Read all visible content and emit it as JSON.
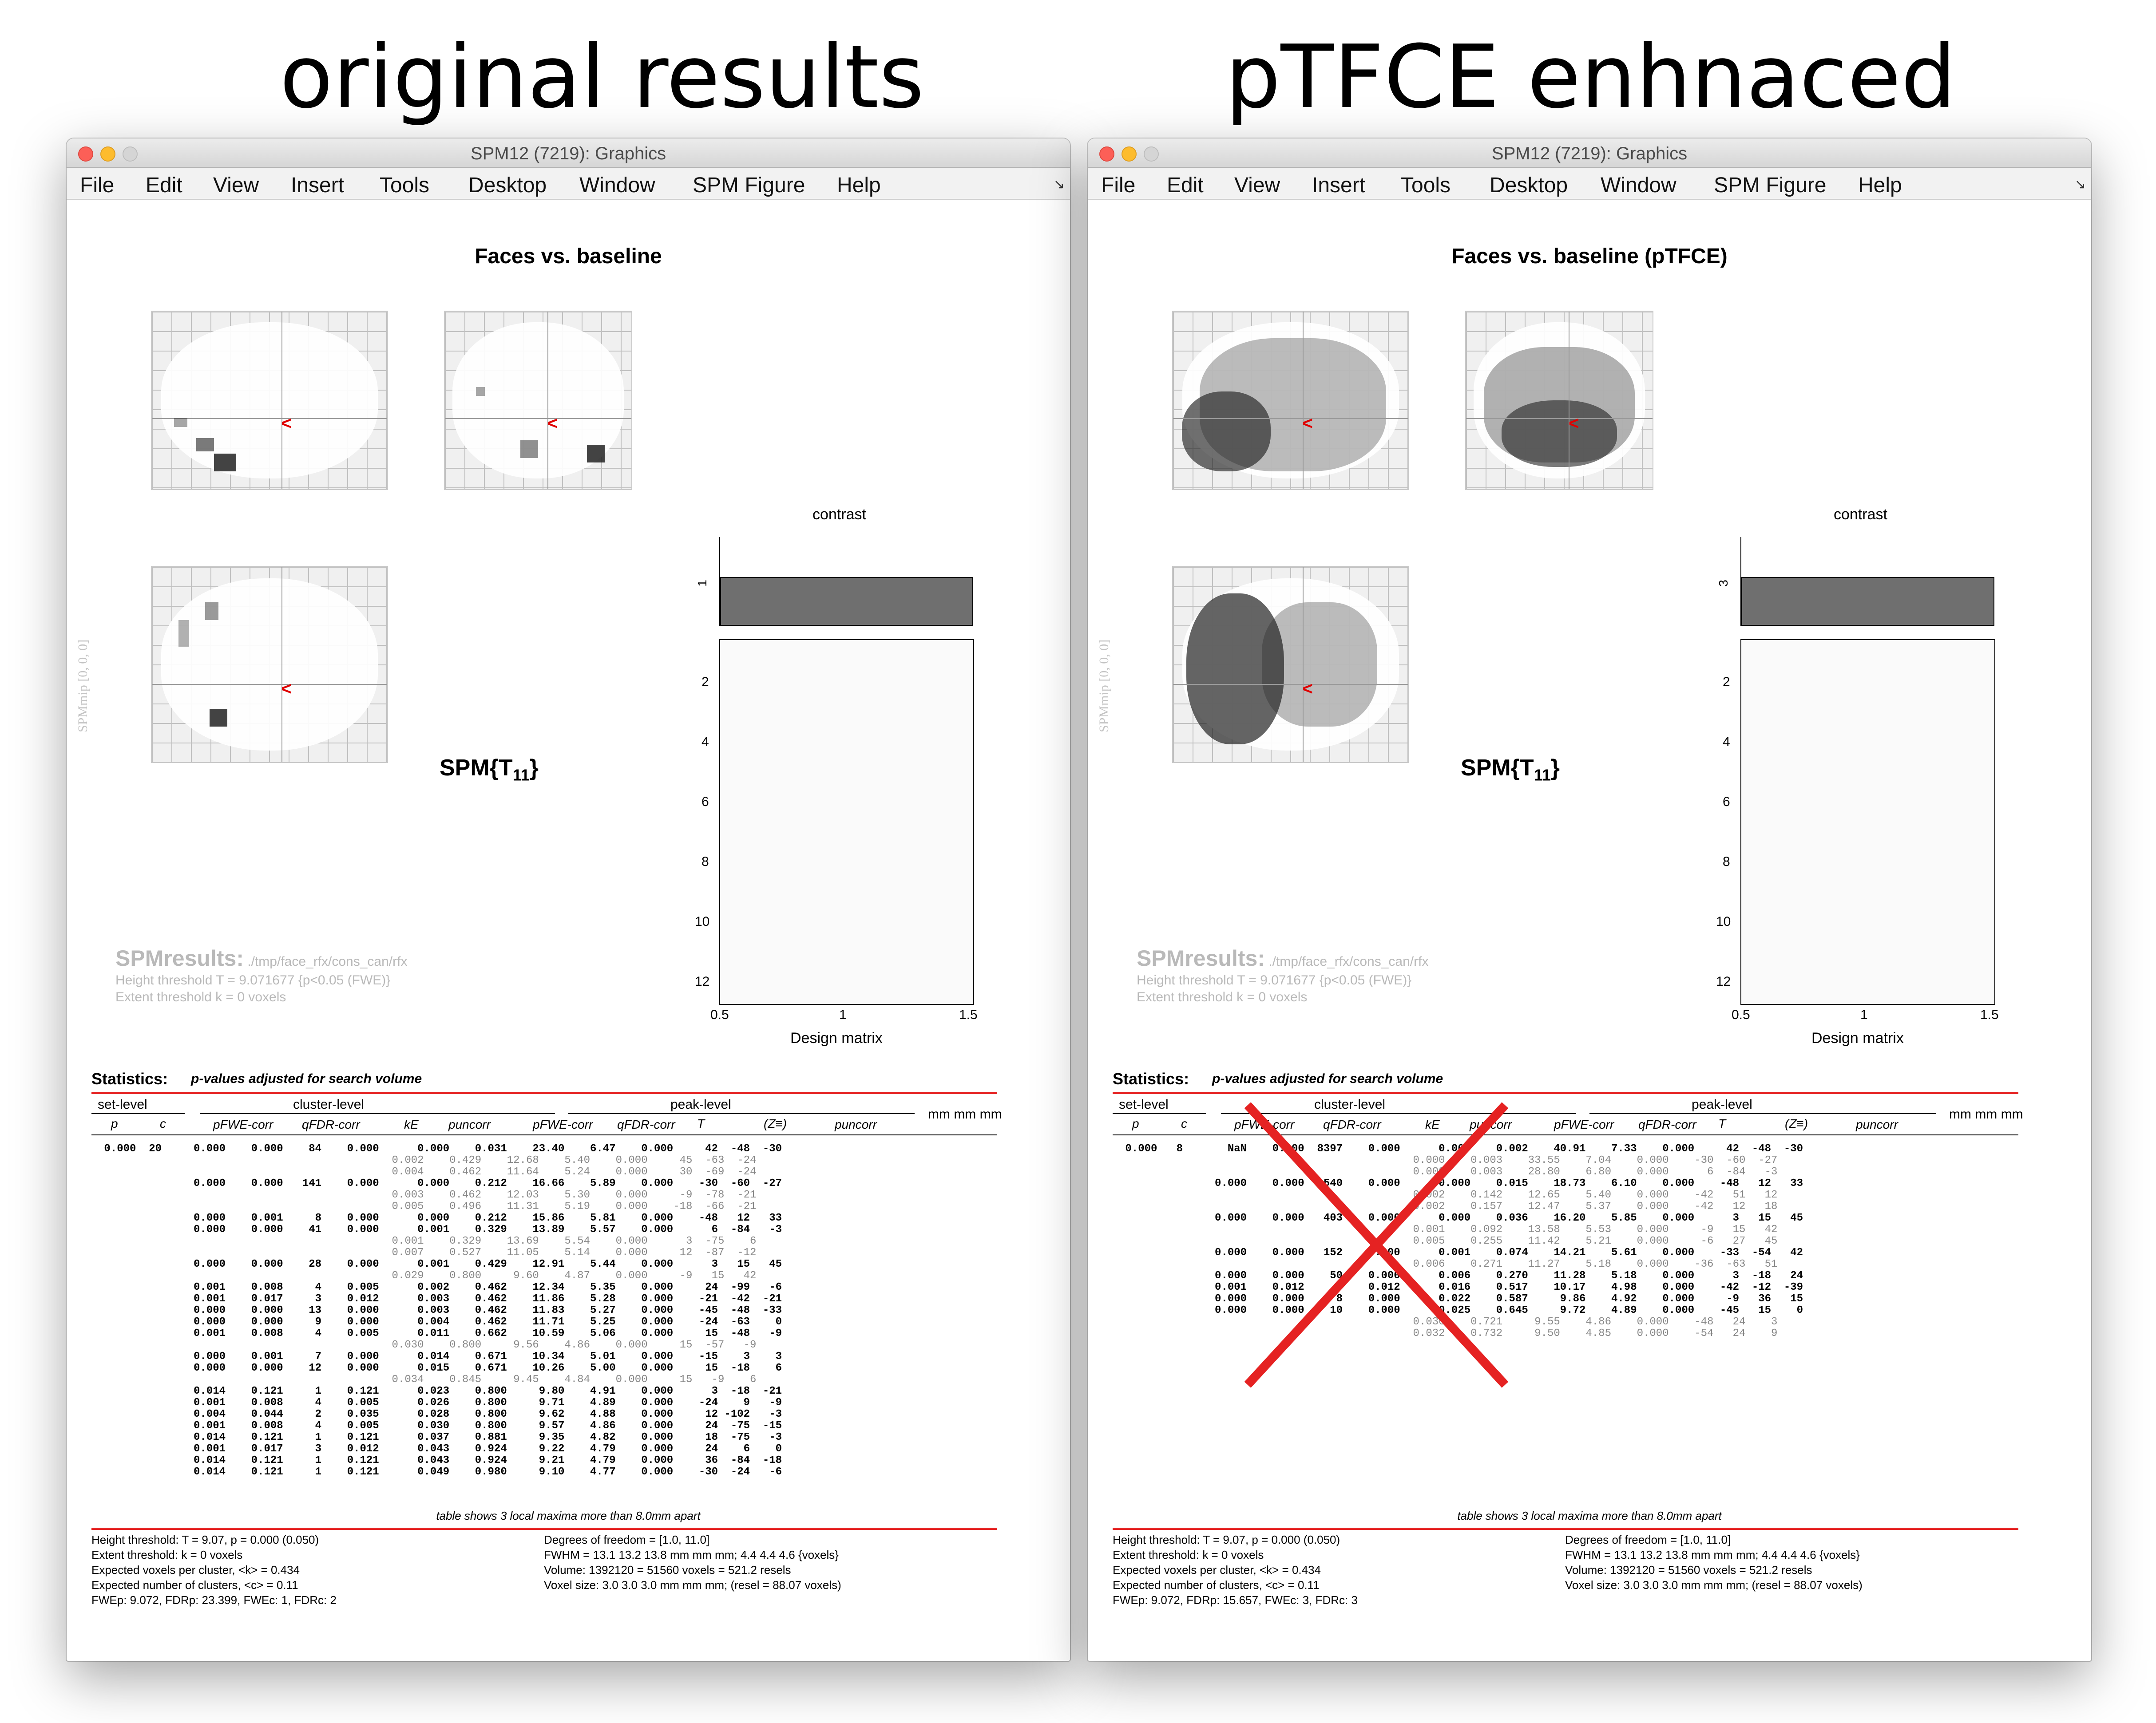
{
  "headings": {
    "left": "original results",
    "right": "pTFCE enhnaced"
  },
  "window_title": "SPM12 (7219): Graphics",
  "menu": [
    "File",
    "Edit",
    "View",
    "Insert",
    "Tools",
    "Desktop",
    "Window",
    "SPM Figure",
    "Help"
  ],
  "menu_corner": "↘",
  "icons": {
    "close": "close-icon",
    "minimize": "minimize-icon",
    "zoom": "zoom-icon",
    "cursor": "red-cursor-icon",
    "cross": "red-cross-icon"
  },
  "colors": {
    "red": "#e52222",
    "cursor": "#e00000",
    "bar": "#6f6f6f"
  },
  "left": {
    "fig_title": "Faces vs. baseline",
    "contrast_value": "1",
    "spmres": {
      "label": "SPMresults:",
      "path": " ./tmp/face_rfx/cons_can/rfx",
      "height": "Height threshold T = 9.071677  {p<0.05 (FWE)}",
      "extent": "Extent threshold k = 0 voxels"
    },
    "rows": [
      {
        "t": "peak",
        "v": " 0.000  20     0.000    0.000    84    0.000      0.000    0.031    23.40    6.47    0.000     42  -48  -30"
      },
      {
        "t": "sub",
        "v": "                                              0.002    0.429    12.68    5.40    0.000     45  -63  -24"
      },
      {
        "t": "sub",
        "v": "                                              0.004    0.462    11.64    5.24    0.000     30  -69  -24"
      },
      {
        "t": "peak",
        "v": "               0.000    0.000   141    0.000      0.000    0.212    16.66    5.89    0.000    -30  -60  -27"
      },
      {
        "t": "sub",
        "v": "                                              0.003    0.462    12.03    5.30    0.000     -9  -78  -21"
      },
      {
        "t": "sub",
        "v": "                                              0.005    0.496    11.31    5.19    0.000    -18  -66  -21"
      },
      {
        "t": "peak",
        "v": "               0.000    0.001     8    0.000      0.000    0.212    15.86    5.81    0.000    -48   12   33"
      },
      {
        "t": "peak",
        "v": "               0.000    0.000    41    0.000      0.001    0.329    13.89    5.57    0.000      6  -84   -3"
      },
      {
        "t": "sub",
        "v": "                                              0.001    0.329    13.69    5.54    0.000      3  -75    6"
      },
      {
        "t": "sub",
        "v": "                                              0.007    0.527    11.05    5.14    0.000     12  -87  -12"
      },
      {
        "t": "peak",
        "v": "               0.000    0.000    28    0.000      0.001    0.429    12.91    5.44    0.000      3   15   45"
      },
      {
        "t": "sub",
        "v": "                                              0.029    0.800     9.60    4.87    0.000     -9   15   42"
      },
      {
        "t": "peak",
        "v": "               0.001    0.008     4    0.005      0.002    0.462    12.34    5.35    0.000     24  -99   -6"
      },
      {
        "t": "peak",
        "v": "               0.001    0.017     3    0.012      0.003    0.462    11.86    5.28    0.000    -21  -42  -21"
      },
      {
        "t": "peak",
        "v": "               0.000    0.000    13    0.000      0.003    0.462    11.83    5.27    0.000    -45  -48  -33"
      },
      {
        "t": "peak",
        "v": "               0.000    0.000     9    0.000      0.004    0.462    11.71    5.25    0.000    -24  -63    0"
      },
      {
        "t": "peak",
        "v": "               0.001    0.008     4    0.005      0.011    0.662    10.59    5.06    0.000     15  -48   -9"
      },
      {
        "t": "sub",
        "v": "                                              0.030    0.800     9.56    4.86    0.000     15  -57   -9"
      },
      {
        "t": "peak",
        "v": "               0.000    0.001     7    0.000      0.014    0.671    10.34    5.01    0.000    -15    3    3"
      },
      {
        "t": "peak",
        "v": "               0.000    0.000    12    0.000      0.015    0.671    10.26    5.00    0.000     15  -18    6"
      },
      {
        "t": "sub",
        "v": "                                              0.034    0.845     9.45    4.84    0.000     15   -9    6"
      },
      {
        "t": "peak",
        "v": "               0.014    0.121     1    0.121      0.023    0.800     9.80    4.91    0.000      3  -18  -21"
      },
      {
        "t": "peak",
        "v": "               0.001    0.008     4    0.005      0.026    0.800     9.71    4.89    0.000    -24    9   -9"
      },
      {
        "t": "peak",
        "v": "               0.004    0.044     2    0.035      0.028    0.800     9.62    4.88    0.000     12 -102   -3"
      },
      {
        "t": "peak",
        "v": "               0.001    0.008     4    0.005      0.030    0.800     9.57    4.86    0.000     24  -75  -15"
      },
      {
        "t": "peak",
        "v": "               0.014    0.121     1    0.121      0.037    0.881     9.35    4.82    0.000     18  -75   -3"
      },
      {
        "t": "peak",
        "v": "               0.001    0.017     3    0.012      0.043    0.924     9.22    4.79    0.000     24    6    0"
      },
      {
        "t": "peak",
        "v": "               0.014    0.121     1    0.121      0.043    0.924     9.21    4.79    0.000     36  -84  -18"
      },
      {
        "t": "peak",
        "v": "               0.014    0.121     1    0.121      0.049    0.980     9.10    4.77    0.000    -30  -24   -6"
      }
    ],
    "footer_left": "Height threshold: T = 9.07, p = 0.000 (0.050)\nExtent threshold: k = 0 voxels\nExpected voxels per cluster, <k> = 0.434\nExpected number of clusters, <c> = 0.11\nFWEp: 9.072, FDRp: 23.399, FWEc: 1, FDRc: 2",
    "footer_right": "Degrees of freedom = [1.0, 11.0]\nFWHM = 13.1 13.2 13.8 mm mm mm; 4.4 4.4 4.6 {voxels}\nVolume: 1392120 = 51560 voxels = 521.2 resels\nVoxel size: 3.0 3.0 3.0 mm mm mm; (resel = 88.07 voxels)"
  },
  "right": {
    "fig_title": "Faces vs. baseline (pTFCE)",
    "contrast_value": "3",
    "spmres": {
      "label": "SPMresults:",
      "path": " ./tmp/face_rfx/cons_can/rfx",
      "height": "Height threshold T = 9.071677  {p<0.05 (FWE)}",
      "extent": "Extent threshold k = 0 voxels"
    },
    "rows": [
      {
        "t": "peak",
        "v": " 0.000   8       NaN    0.000  8397    0.000      0.000    0.002    40.91    7.33    0.000     42  -48  -30"
      },
      {
        "t": "sub",
        "v": "                                              0.000    0.003    33.55    7.04    0.000    -30  -60  -27"
      },
      {
        "t": "sub",
        "v": "                                              0.000    0.003    28.80    6.80    0.000      6  -84   -3"
      },
      {
        "t": "peak",
        "v": "               0.000    0.000   540    0.000      0.000    0.015    18.73    6.10    0.000    -48   12   33"
      },
      {
        "t": "sub",
        "v": "                                              0.002    0.142    12.65    5.40    0.000    -42   51   12"
      },
      {
        "t": "sub",
        "v": "                                              0.002    0.157    12.47    5.37    0.000    -42   12   18"
      },
      {
        "t": "peak",
        "v": "               0.000    0.000   403    0.000      0.000    0.036    16.20    5.85    0.000      3   15   45"
      },
      {
        "t": "sub",
        "v": "                                              0.001    0.092    13.58    5.53    0.000     -9   15   42"
      },
      {
        "t": "sub",
        "v": "                                              0.005    0.255    11.42    5.21    0.000     -6   27   45"
      },
      {
        "t": "peak",
        "v": "               0.000    0.000   152    0.000      0.001    0.074    14.21    5.61    0.000    -33  -54   42"
      },
      {
        "t": "sub",
        "v": "                                              0.006    0.271    11.27    5.18    0.000    -36  -63   51"
      },
      {
        "t": "peak",
        "v": "               0.000    0.000    50    0.000      0.006    0.270    11.28    5.18    0.000      3  -18   24"
      },
      {
        "t": "peak",
        "v": "               0.001    0.012     3    0.012      0.016    0.517    10.17    4.98    0.000    -42  -12  -39"
      },
      {
        "t": "peak",
        "v": "               0.000    0.000     8    0.000      0.022    0.587     9.86    4.92    0.000     -9   36   15"
      },
      {
        "t": "peak",
        "v": "               0.000    0.000    10    0.000      0.025    0.645     9.72    4.89    0.000    -45   15    0"
      },
      {
        "t": "sub",
        "v": "                                              0.030    0.721     9.55    4.86    0.000    -48   24    3"
      },
      {
        "t": "sub",
        "v": "                                              0.032    0.732     9.50    4.85    0.000    -54   24    9"
      }
    ],
    "footer_left": "Height threshold: T = 9.07, p = 0.000 (0.050)\nExtent threshold: k = 0 voxels\nExpected voxels per cluster, <k> = 0.434\nExpected number of clusters, <c> = 0.11\nFWEp: 9.072, FDRp: 15.657, FWEc: 3, FDRc: 3",
    "footer_right": "Degrees of freedom = [1.0, 11.0]\nFWHM = 13.1 13.2 13.8 mm mm mm; 4.4 4.4 4.6 {voxels}\nVolume: 1392120 = 51560 voxels = 521.2 resels\nVoxel size: 3.0 3.0 3.0 mm mm mm; (resel = 88.07 voxels)"
  },
  "shared": {
    "spm_mip_label": "SPMmip [0, 0, 0]",
    "spm_t": "SPM{T",
    "spm_t_sub": "11",
    "spm_t_close": "}",
    "contrast_label": "contrast",
    "design_matrix_label": "Design matrix",
    "dm_yticks": [
      "2",
      "4",
      "6",
      "8",
      "10",
      "12"
    ],
    "dm_xticks": [
      "0.5",
      "1",
      "1.5"
    ],
    "stats_title": "Statistics:",
    "stats_sub": "p-values adjusted for search volume",
    "set_level": "set-level",
    "cluster_level": "cluster-level",
    "peak_level": "peak-level",
    "mm": "mm mm mm",
    "cols": {
      "p": "p",
      "c": "c",
      "pfwe": "pFWE-corr",
      "qfdr": "qFDR-corr",
      "ke": "kE",
      "punc": "puncorr",
      "t": "T",
      "z": "(Z≡)"
    },
    "table_note": "table shows 3 local maxima more than 8.0mm apart"
  }
}
